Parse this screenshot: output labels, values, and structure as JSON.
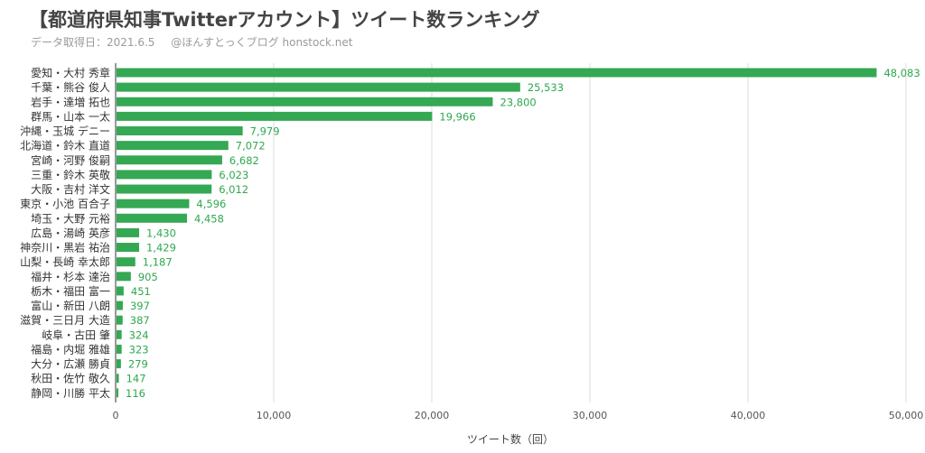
{
  "title": "【都道府県知事Twitterアカウント】ツイート数ランキング",
  "subtitle": {
    "date": "データ取得日：2021.6.5",
    "source": "@ほんすとっくブログ honstock.net"
  },
  "colors": {
    "bar": "#34a853",
    "label": "#2fa84f",
    "grid": "#dddddd"
  },
  "chart_data": {
    "type": "bar",
    "orientation": "horizontal",
    "categories": [
      "愛知・大村 秀章",
      "千葉・熊谷 俊人",
      "岩手・達増 拓也",
      "群馬・山本 一太",
      "沖縄・玉城 デニー",
      "北海道・鈴木 直道",
      "宮崎・河野 俊嗣",
      "三重・鈴木 英敬",
      "大阪・吉村 洋文",
      "東京・小池 百合子",
      "埼玉・大野 元裕",
      "広島・湯崎 英彦",
      "神奈川・黒岩 祐治",
      "山梨・長崎 幸太郎",
      "福井・杉本 達治",
      "栃木・福田 富一",
      "富山・新田 八朗",
      "滋賀・三日月 大造",
      "岐阜・古田 肇",
      "福島・内堀 雅雄",
      "大分・広瀬 勝貞",
      "秋田・佐竹 敬久",
      "静岡・川勝 平太"
    ],
    "values": [
      48083,
      25533,
      23800,
      19966,
      7979,
      7072,
      6682,
      6023,
      6012,
      4596,
      4458,
      1430,
      1429,
      1187,
      905,
      451,
      397,
      387,
      324,
      323,
      279,
      147,
      116
    ],
    "value_labels": [
      "48,083",
      "25,533",
      "23,800",
      "19,966",
      "7,979",
      "7,072",
      "6,682",
      "6,023",
      "6,012",
      "4,596",
      "4,458",
      "1,430",
      "1,429",
      "1,187",
      "905",
      "451",
      "397",
      "387",
      "324",
      "323",
      "279",
      "147",
      "116"
    ],
    "xlabel": "ツイート数（回）",
    "xlim": [
      0,
      50000
    ],
    "xticks": [
      0,
      10000,
      20000,
      30000,
      40000,
      50000
    ],
    "xtick_labels": [
      "0",
      "10,000",
      "20,000",
      "30,000",
      "40,000",
      "50,000"
    ],
    "grid": true,
    "legend": "none"
  }
}
